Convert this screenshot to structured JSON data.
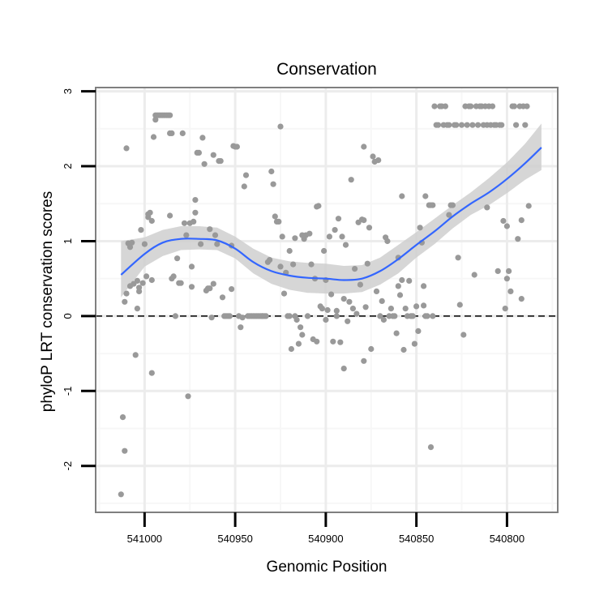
{
  "chart_data": {
    "type": "scatter",
    "title": "Conservation",
    "xlabel": "Genomic Position",
    "ylabel": "phyloP LRT conservation scores",
    "x_reversed": true,
    "xlim": [
      541027,
      540772
    ],
    "ylim": [
      -2.62,
      3.05
    ],
    "x_ticks": [
      541000,
      540950,
      540900,
      540850,
      540800
    ],
    "y_ticks": [
      -2,
      -1,
      0,
      1,
      2,
      3
    ],
    "grid": true,
    "reference_line": {
      "y": 0,
      "style": "dashed"
    },
    "colors": {
      "points": "#999999",
      "smooth_line": "#3366ff",
      "ribbon": "#cfcfcf",
      "grid_major": "#ececec",
      "grid_minor": "#f7f7f7",
      "panel_border": "#7f7f7f"
    },
    "points": [
      [
        541013,
        -2.38
      ],
      [
        541012,
        -1.35
      ],
      [
        541011,
        -1.8
      ],
      [
        541011,
        0.19
      ],
      [
        541010,
        2.24
      ],
      [
        541010,
        0.3
      ],
      [
        541009,
        0.97
      ],
      [
        541008,
        0.92
      ],
      [
        541008,
        0.4
      ],
      [
        541007,
        0.98
      ],
      [
        541006,
        0.43
      ],
      [
        541005,
        -0.52
      ],
      [
        541004,
        0.47
      ],
      [
        541004,
        0.1
      ],
      [
        541003,
        0.38
      ],
      [
        541002,
        1.15
      ],
      [
        541001,
        0.44
      ],
      [
        541000,
        0.96
      ],
      [
        540999,
        0.53
      ],
      [
        540998,
        1.36
      ],
      [
        540998,
        1.32
      ],
      [
        540997,
        1.38
      ],
      [
        540996,
        1.27
      ],
      [
        540996,
        -0.76
      ],
      [
        540995,
        2.39
      ],
      [
        540994,
        2.62
      ],
      [
        540994,
        2.68
      ],
      [
        540993,
        2.68
      ],
      [
        540992,
        2.68
      ],
      [
        540991,
        2.68
      ],
      [
        540990,
        2.68
      ],
      [
        540989,
        2.68
      ],
      [
        540988,
        2.68
      ],
      [
        540987,
        2.68
      ],
      [
        540986,
        2.68
      ],
      [
        540986,
        2.44
      ],
      [
        540985,
        2.44
      ],
      [
        540985,
        0.5
      ],
      [
        540984,
        0.53
      ],
      [
        540983,
        0.0
      ],
      [
        540982,
        0.77
      ],
      [
        540981,
        0.44
      ],
      [
        540980,
        0.44
      ],
      [
        540979,
        2.44
      ],
      [
        540978,
        1.24
      ],
      [
        540977,
        1.08
      ],
      [
        540976,
        -1.07
      ],
      [
        540975,
        1.24
      ],
      [
        540974,
        0.66
      ],
      [
        540973,
        1.26
      ],
      [
        540972,
        1.55
      ],
      [
        540972,
        1.38
      ],
      [
        540971,
        2.18
      ],
      [
        540970,
        2.18
      ],
      [
        540969,
        0.96
      ],
      [
        540968,
        2.38
      ],
      [
        540967,
        2.03
      ],
      [
        540966,
        0.34
      ],
      [
        540965,
        0.37
      ],
      [
        540964,
        0.37
      ],
      [
        540963,
        -0.02
      ],
      [
        540962,
        2.15
      ],
      [
        540962,
        0.43
      ],
      [
        540961,
        1.08
      ],
      [
        540960,
        0.96
      ],
      [
        540959,
        2.07
      ],
      [
        540958,
        2.07
      ],
      [
        540957,
        0.25
      ],
      [
        540956,
        0.0
      ],
      [
        540955,
        0.0
      ],
      [
        540954,
        0.0
      ],
      [
        540953,
        0.0
      ],
      [
        540952,
        0.36
      ],
      [
        540952,
        0.94
      ],
      [
        540951,
        2.27
      ],
      [
        540950,
        2.26
      ],
      [
        540949,
        2.26
      ],
      [
        540948,
        0.0
      ],
      [
        540947,
        -0.15
      ],
      [
        540946,
        -0.02
      ],
      [
        540945,
        1.73
      ],
      [
        540944,
        1.88
      ],
      [
        540943,
        0.0
      ],
      [
        540942,
        0.0
      ],
      [
        540941,
        0.0
      ],
      [
        540940,
        0.0
      ],
      [
        540939,
        0.0
      ],
      [
        540938,
        0.0
      ],
      [
        540937,
        0.0
      ],
      [
        540936,
        0.0
      ],
      [
        540935,
        0.0
      ],
      [
        540934,
        0.0
      ],
      [
        540933,
        0.0
      ],
      [
        540932,
        0.72
      ],
      [
        540931,
        0.75
      ],
      [
        540930,
        1.93
      ],
      [
        540929,
        1.76
      ],
      [
        540928,
        1.33
      ],
      [
        540927,
        1.26
      ],
      [
        540926,
        1.26
      ],
      [
        540925,
        0.66
      ],
      [
        540925,
        2.53
      ],
      [
        540924,
        1.06
      ],
      [
        540923,
        0.3
      ],
      [
        540922,
        0.58
      ],
      [
        540921,
        0.0
      ],
      [
        540920,
        0.87
      ],
      [
        540919,
        -0.44
      ],
      [
        540918,
        0.69
      ],
      [
        540917,
        0.0
      ],
      [
        540917,
        1.04
      ],
      [
        540916,
        -0.05
      ],
      [
        540915,
        -0.37
      ],
      [
        540914,
        -0.15
      ],
      [
        540913,
        1.08
      ],
      [
        540912,
        1.03
      ],
      [
        540911,
        1.08
      ],
      [
        540910,
        0.0
      ],
      [
        540909,
        1.1
      ],
      [
        540908,
        0.69
      ],
      [
        540907,
        -0.31
      ],
      [
        540906,
        0.5
      ],
      [
        540905,
        -0.34
      ],
      [
        540905,
        1.46
      ],
      [
        540904,
        1.47
      ],
      [
        540903,
        0.13
      ],
      [
        540902,
        0.1
      ],
      [
        540901,
        0.87
      ],
      [
        540900,
        0.48
      ],
      [
        540900,
        -0.05
      ],
      [
        540899,
        0.08
      ],
      [
        540898,
        1.06
      ],
      [
        540897,
        0.29
      ],
      [
        540896,
        -0.34
      ],
      [
        540895,
        1.15
      ],
      [
        540894,
        0.07
      ],
      [
        540893,
        1.3
      ],
      [
        540892,
        -0.35
      ],
      [
        540891,
        1.06
      ],
      [
        540890,
        0.23
      ],
      [
        540889,
        0.95
      ],
      [
        540888,
        -0.07
      ],
      [
        540887,
        0.19
      ],
      [
        540886,
        1.82
      ],
      [
        540885,
        0.1
      ],
      [
        540884,
        0.63
      ],
      [
        540883,
        0.03
      ],
      [
        540882,
        1.25
      ],
      [
        540881,
        0.42
      ],
      [
        540880,
        1.29
      ],
      [
        540879,
        -0.6
      ],
      [
        540879,
        2.26
      ],
      [
        540878,
        0.12
      ],
      [
        540877,
        0.7
      ],
      [
        540876,
        1.18
      ],
      [
        540875,
        -0.44
      ],
      [
        540874,
        2.13
      ],
      [
        540873,
        2.06
      ],
      [
        540872,
        0.33
      ],
      [
        540871,
        2.08
      ],
      [
        540870,
        0.0
      ],
      [
        540869,
        0.2
      ],
      [
        540868,
        -0.05
      ],
      [
        540867,
        1.05
      ],
      [
        540866,
        1.0
      ],
      [
        540865,
        0.0
      ],
      [
        540864,
        0.1
      ],
      [
        540863,
        0.0
      ],
      [
        540862,
        0.0
      ],
      [
        540861,
        -0.23
      ],
      [
        540860,
        0.78
      ],
      [
        540859,
        0.28
      ],
      [
        540858,
        0.48
      ],
      [
        540857,
        -0.45
      ],
      [
        540856,
        0.1
      ],
      [
        540855,
        0.0
      ],
      [
        540854,
        0.47
      ],
      [
        540853,
        0.0
      ],
      [
        540852,
        0.0
      ],
      [
        540851,
        -0.37
      ],
      [
        540850,
        0.13
      ],
      [
        540849,
        -0.2
      ],
      [
        540848,
        1.18
      ],
      [
        540847,
        0.98
      ],
      [
        540846,
        0.14
      ],
      [
        540845,
        0.0
      ],
      [
        540844,
        0.0
      ],
      [
        540843,
        1.48
      ],
      [
        540842,
        1.48
      ],
      [
        540841,
        1.48
      ],
      [
        540840,
        2.8
      ],
      [
        540839,
        2.55
      ],
      [
        540838,
        2.55
      ],
      [
        540837,
        2.8
      ],
      [
        540836,
        2.8
      ],
      [
        540835,
        2.55
      ],
      [
        540834,
        2.8
      ],
      [
        540833,
        2.55
      ],
      [
        540832,
        2.55
      ],
      [
        540831,
        1.48
      ],
      [
        540830,
        1.48
      ],
      [
        540829,
        2.55
      ],
      [
        540828,
        2.55
      ],
      [
        540827,
        0.78
      ],
      [
        540826,
        0.15
      ],
      [
        540825,
        2.55
      ],
      [
        540824,
        -0.25
      ],
      [
        540823,
        2.8
      ],
      [
        540822,
        2.55
      ],
      [
        540821,
        2.8
      ],
      [
        540820,
        2.8
      ],
      [
        540819,
        2.55
      ],
      [
        540818,
        0.55
      ],
      [
        540817,
        2.8
      ],
      [
        540816,
        2.55
      ],
      [
        540815,
        2.8
      ],
      [
        540814,
        2.8
      ],
      [
        540813,
        2.55
      ],
      [
        540812,
        2.8
      ],
      [
        540811,
        2.55
      ],
      [
        540810,
        2.8
      ],
      [
        540809,
        2.55
      ],
      [
        540808,
        2.8
      ],
      [
        540807,
        2.55
      ],
      [
        540806,
        2.55
      ],
      [
        540805,
        0.6
      ],
      [
        540804,
        2.55
      ],
      [
        540803,
        2.55
      ],
      [
        540802,
        1.27
      ],
      [
        540801,
        0.1
      ],
      [
        540800,
        1.2
      ],
      [
        540799,
        0.6
      ],
      [
        540798,
        0.33
      ],
      [
        540797,
        2.8
      ],
      [
        540796,
        2.8
      ],
      [
        540795,
        2.55
      ],
      [
        540794,
        1.03
      ],
      [
        540793,
        2.8
      ],
      [
        540792,
        1.28
      ],
      [
        540791,
        2.8
      ],
      [
        540790,
        2.55
      ],
      [
        540789,
        2.8
      ],
      [
        540788,
        1.47
      ],
      [
        540792,
        0.23
      ],
      [
        540800,
        0.5
      ],
      [
        540811,
        1.45
      ],
      [
        540832,
        1.35
      ],
      [
        540846,
        0.4
      ],
      [
        540860,
        0.4
      ],
      [
        540858,
        1.6
      ],
      [
        540894,
        0.0
      ],
      [
        540913,
        -0.25
      ],
      [
        540935,
        0.0
      ],
      [
        540974,
        0.39
      ],
      [
        540986,
        1.34
      ],
      [
        540996,
        0.48
      ],
      [
        541003,
        0.33
      ],
      [
        540842,
        -1.75
      ],
      [
        540845,
        1.6
      ],
      [
        540879,
        1.28
      ],
      [
        540890,
        -0.7
      ],
      [
        540920,
        0.0
      ],
      [
        540964,
        1.16
      ],
      [
        540841,
        0.0
      ]
    ],
    "smooth": {
      "x": [
        541013,
        541000,
        540990,
        540980,
        540970,
        540960,
        540950,
        540940,
        540930,
        540920,
        540910,
        540900,
        540890,
        540880,
        540870,
        540860,
        540850,
        540840,
        540830,
        540820,
        540810,
        540800,
        540790,
        540781
      ],
      "y": [
        0.55,
        0.83,
        0.98,
        1.03,
        1.03,
        1.01,
        0.9,
        0.72,
        0.6,
        0.54,
        0.51,
        0.5,
        0.48,
        0.5,
        0.6,
        0.76,
        0.95,
        1.13,
        1.33,
        1.5,
        1.65,
        1.83,
        2.04,
        2.25
      ],
      "lower": [
        0.25,
        0.66,
        0.8,
        0.88,
        0.89,
        0.88,
        0.77,
        0.57,
        0.43,
        0.35,
        0.31,
        0.3,
        0.3,
        0.32,
        0.42,
        0.57,
        0.78,
        0.96,
        1.17,
        1.35,
        1.48,
        1.64,
        1.82,
        1.95
      ],
      "upper": [
        1.0,
        1.05,
        1.15,
        1.2,
        1.2,
        1.18,
        1.06,
        0.9,
        0.78,
        0.73,
        0.71,
        0.7,
        0.67,
        0.68,
        0.78,
        0.95,
        1.12,
        1.3,
        1.48,
        1.65,
        1.84,
        2.05,
        2.3,
        2.57
      ]
    }
  }
}
